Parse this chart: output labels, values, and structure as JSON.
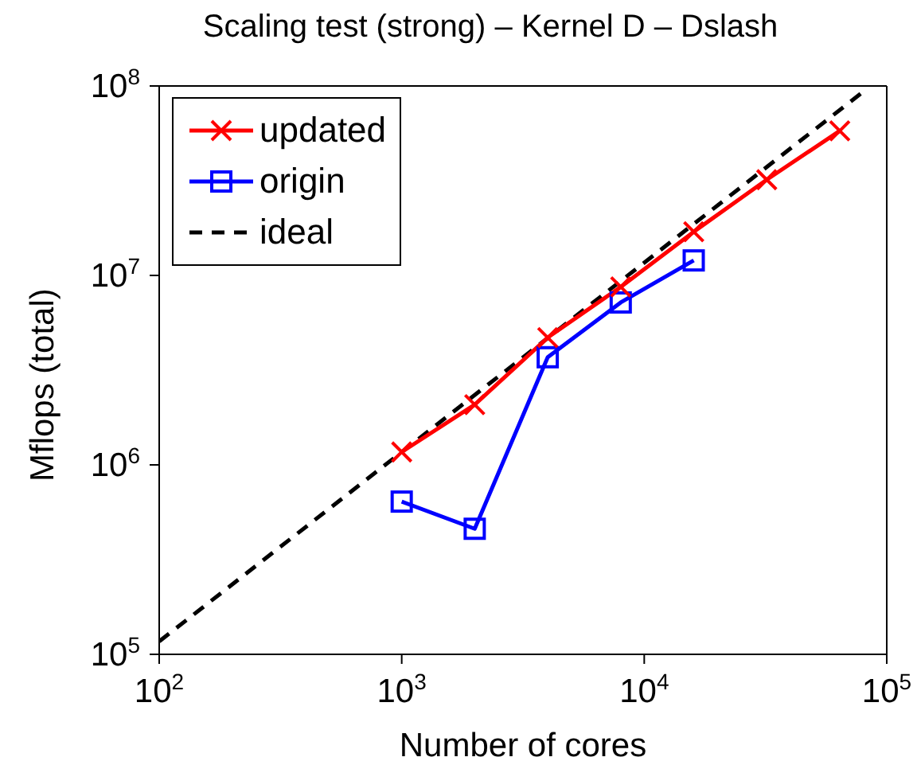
{
  "chart_data": {
    "type": "line",
    "title": "Scaling test (strong) – Kernel D – Dslash",
    "xlabel": "Number of cores",
    "ylabel": "Mflops (total)",
    "log": "xy",
    "xlim": [
      100,
      100000
    ],
    "ylim": [
      100000,
      100000000
    ],
    "xticks": [
      {
        "value": 100,
        "label": "10$^{2}$"
      },
      {
        "value": 1000,
        "label": "10$^{3}$"
      },
      {
        "value": 10000,
        "label": "10$^{4}$"
      },
      {
        "value": 100000,
        "label": "10$^{5}$"
      }
    ],
    "yticks": [
      {
        "value": 100000,
        "label": "10$^{5}$"
      },
      {
        "value": 1000000,
        "label": "10$^{6}$"
      },
      {
        "value": 10000000,
        "label": "10$^{7}$"
      },
      {
        "value": 100000000,
        "label": "10$^{8}$"
      }
    ],
    "grid": false,
    "legend": "top left",
    "series": [
      {
        "name": "updated",
        "color": "#ff0000",
        "marker": "cross",
        "line_style": "solid",
        "x": [
          1000,
          2000,
          4000,
          8000,
          16000,
          32000,
          64000
        ],
        "values": [
          1170000,
          2080000,
          4700000,
          8700000,
          17000000,
          32000000,
          58000000
        ]
      },
      {
        "name": "origin",
        "color": "#0000ff",
        "marker": "square",
        "line_style": "solid",
        "x": [
          1000,
          2000,
          4000,
          8000,
          16000
        ],
        "values": [
          640000,
          460000,
          3700000,
          7200000,
          12000000
        ]
      },
      {
        "name": "ideal",
        "color": "#000000",
        "marker": "none",
        "line_style": "dashed",
        "x": [
          100,
          78000
        ],
        "values": [
          117000,
          91000000
        ]
      }
    ]
  }
}
